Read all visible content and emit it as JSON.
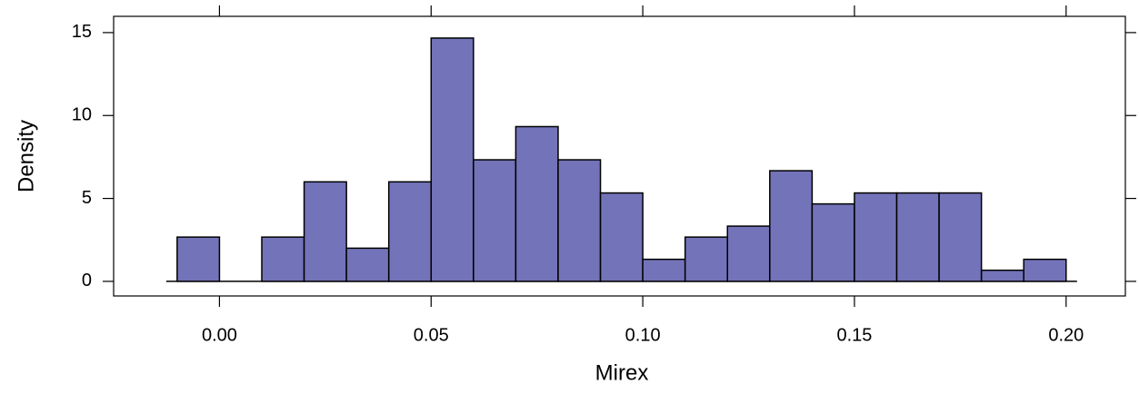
{
  "chart_data": {
    "type": "histogram",
    "x_label": "Mirex",
    "y_label": "Density",
    "bins": [
      -0.01,
      0.0,
      0.01,
      0.02,
      0.03,
      0.04,
      0.05,
      0.06,
      0.07,
      0.08,
      0.09,
      0.1,
      0.11,
      0.12,
      0.13,
      0.14,
      0.15,
      0.16,
      0.17,
      0.18,
      0.19,
      0.2
    ],
    "values": [
      2.67,
      0,
      2.67,
      6,
      2,
      6,
      14.67,
      7.33,
      9.33,
      7.33,
      5.33,
      1.33,
      2.67,
      3.33,
      6.67,
      4.67,
      5.33,
      5.33,
      5.33,
      0.67,
      1.33
    ],
    "color": "#7373b9",
    "xlim": [
      -0.025,
      0.214
    ],
    "ylim": [
      -0.88,
      15.98
    ],
    "xticks": [
      {
        "value": 0,
        "label": "0.00"
      },
      0.05,
      {
        "value": 0.1,
        "label": "0.10"
      },
      0.15,
      {
        "value": 0.2,
        "label": "0.20"
      }
    ],
    "yticks": [
      0,
      5,
      10,
      15
    ]
  }
}
